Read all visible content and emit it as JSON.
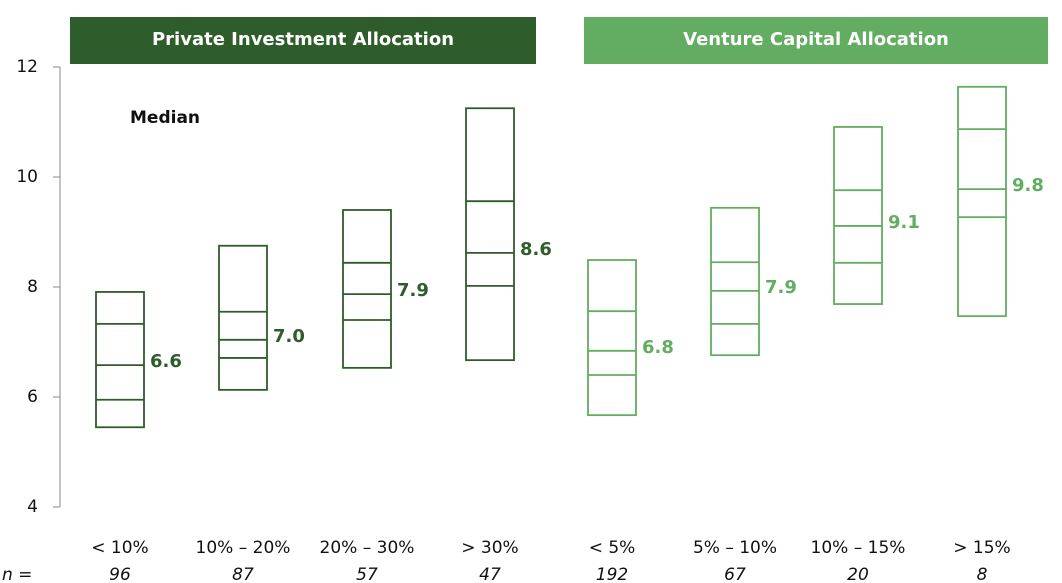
{
  "chart_data": {
    "type": "box",
    "annotation": "Median",
    "n_label": "n =",
    "ylim": [
      4,
      12
    ],
    "yticks": [
      4,
      6,
      8,
      10,
      12
    ],
    "groups": [
      {
        "title": "Private Investment Allocation",
        "color": "#2f5c2b",
        "categories": [
          "< 10%",
          "10% – 20%",
          "20% – 30%",
          "> 30%"
        ],
        "n": [
          96,
          87,
          57,
          47
        ],
        "bottom": [
          5.45,
          6.13,
          6.53,
          6.67
        ],
        "lower": [
          5.95,
          6.71,
          7.4,
          8.02
        ],
        "median": [
          6.58,
          7.04,
          7.87,
          8.62
        ],
        "upper": [
          7.33,
          7.55,
          8.44,
          9.56
        ],
        "top": [
          7.91,
          8.75,
          9.4,
          11.25
        ],
        "value_labels": [
          "6.6",
          "7.0",
          "7.9",
          "8.6"
        ]
      },
      {
        "title": "Venture Capital Allocation",
        "color": "#63ad62",
        "categories": [
          "< 5%",
          "5% – 10%",
          "10% – 15%",
          "> 15%"
        ],
        "n": [
          192,
          67,
          20,
          8
        ],
        "bottom": [
          5.67,
          6.76,
          7.69,
          7.47
        ],
        "lower": [
          6.4,
          7.33,
          8.44,
          9.27
        ],
        "median": [
          6.84,
          7.93,
          9.11,
          9.78
        ],
        "upper": [
          7.56,
          8.45,
          9.76,
          10.87
        ],
        "top": [
          8.49,
          9.44,
          10.91,
          11.64
        ],
        "value_labels": [
          "6.8",
          "7.9",
          "9.1",
          "9.8"
        ]
      }
    ]
  }
}
